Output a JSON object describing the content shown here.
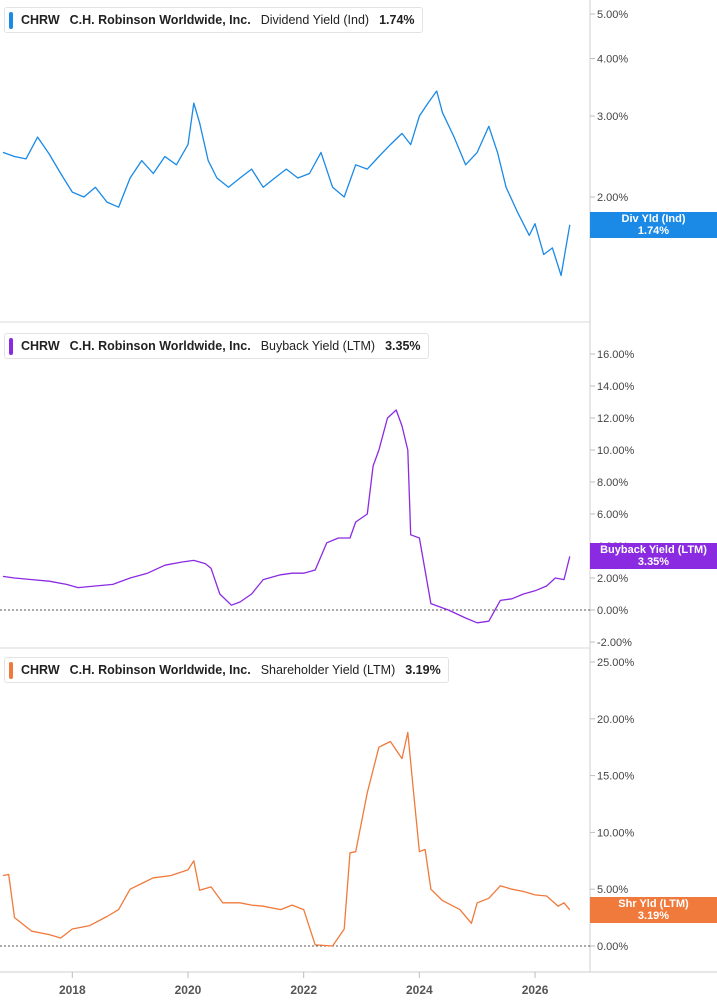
{
  "panels": [
    {
      "ticker": "CHRW",
      "company": "C.H. Robinson Worldwide, Inc.",
      "metric": "Dividend Yield (Ind)",
      "value": "1.74%",
      "tag_line1": "Div Yld (Ind)",
      "tag_line2": "1.74%",
      "color": "#1a8ae6"
    },
    {
      "ticker": "CHRW",
      "company": "C.H. Robinson Worldwide, Inc.",
      "metric": "Buyback Yield (LTM)",
      "value": "3.35%",
      "tag_line1": "Buyback Yield (LTM)",
      "tag_line2": "3.35%",
      "color": "#8a2be2"
    },
    {
      "ticker": "CHRW",
      "company": "C.H. Robinson Worldwide, Inc.",
      "metric": "Shareholder Yield (LTM)",
      "value": "3.19%",
      "tag_line1": "Shr Yld (LTM)",
      "tag_line2": "3.19%",
      "color": "#f07a3c"
    }
  ],
  "chart_data": [
    {
      "type": "line",
      "title": "CHRW C.H. Robinson Worldwide, Inc. Dividend Yield (Ind) 1.74%",
      "y_scale": "log",
      "y_ticks": [
        2.0,
        3.0,
        4.0,
        5.0
      ],
      "y_tick_labels": [
        "2.00%",
        "3.00%",
        "4.00%",
        "5.00%"
      ],
      "series": [
        {
          "name": "Dividend Yield (Ind)",
          "x": [
            2016.8,
            2017.0,
            2017.2,
            2017.4,
            2017.6,
            2017.8,
            2018.0,
            2018.2,
            2018.4,
            2018.6,
            2018.8,
            2019.0,
            2019.2,
            2019.4,
            2019.6,
            2019.8,
            2020.0,
            2020.1,
            2020.2,
            2020.35,
            2020.5,
            2020.7,
            2020.9,
            2021.1,
            2021.3,
            2021.5,
            2021.7,
            2021.9,
            2022.1,
            2022.3,
            2022.5,
            2022.7,
            2022.9,
            2023.1,
            2023.3,
            2023.5,
            2023.7,
            2023.85,
            2024.0,
            2024.15,
            2024.3,
            2024.4,
            2024.6,
            2024.8,
            2025.0,
            2025.2,
            2025.35,
            2025.5,
            2025.7,
            2025.9,
            2026.0,
            2026.15,
            2026.3,
            2026.45,
            2026.55,
            2026.6
          ],
          "values": [
            2.5,
            2.45,
            2.42,
            2.7,
            2.48,
            2.25,
            2.05,
            2.0,
            2.1,
            1.95,
            1.9,
            2.2,
            2.4,
            2.25,
            2.45,
            2.35,
            2.6,
            3.2,
            2.9,
            2.4,
            2.2,
            2.1,
            2.2,
            2.3,
            2.1,
            2.2,
            2.3,
            2.2,
            2.25,
            2.5,
            2.1,
            2.0,
            2.35,
            2.3,
            2.45,
            2.6,
            2.75,
            2.6,
            3.0,
            3.2,
            3.4,
            3.05,
            2.7,
            2.35,
            2.5,
            2.85,
            2.5,
            2.1,
            1.85,
            1.65,
            1.75,
            1.5,
            1.55,
            1.35,
            1.6,
            1.74
          ]
        }
      ]
    },
    {
      "type": "line",
      "title": "CHRW C.H. Robinson Worldwide, Inc. Buyback Yield (LTM) 3.35%",
      "y_ticks": [
        -2,
        0,
        2,
        4,
        6,
        8,
        10,
        12,
        14,
        16
      ],
      "y_tick_labels": [
        "-2.00%",
        "0.00%",
        "2.00%",
        "4.00%",
        "6.00%",
        "8.00%",
        "10.00%",
        "12.00%",
        "14.00%",
        "16.00%"
      ],
      "reference_line": 0,
      "series": [
        {
          "name": "Buyback Yield (LTM)",
          "x": [
            2016.8,
            2017.0,
            2017.3,
            2017.6,
            2017.9,
            2018.1,
            2018.4,
            2018.7,
            2019.0,
            2019.3,
            2019.6,
            2019.9,
            2020.1,
            2020.3,
            2020.4,
            2020.55,
            2020.75,
            2020.9,
            2021.1,
            2021.3,
            2021.6,
            2021.8,
            2022.0,
            2022.2,
            2022.4,
            2022.6,
            2022.8,
            2022.9,
            2023.1,
            2023.2,
            2023.3,
            2023.45,
            2023.6,
            2023.7,
            2023.8,
            2023.85,
            2024.0,
            2024.2,
            2024.5,
            2024.8,
            2025.0,
            2025.2,
            2025.4,
            2025.6,
            2025.8,
            2026.0,
            2026.2,
            2026.35,
            2026.5,
            2026.6
          ],
          "values": [
            2.1,
            2.0,
            1.9,
            1.8,
            1.6,
            1.4,
            1.5,
            1.6,
            2.0,
            2.3,
            2.8,
            3.0,
            3.1,
            2.9,
            2.6,
            1.0,
            0.3,
            0.5,
            1.0,
            1.9,
            2.2,
            2.3,
            2.3,
            2.5,
            4.2,
            4.5,
            4.5,
            5.5,
            6.0,
            9.0,
            10.0,
            12.0,
            12.5,
            11.5,
            10.0,
            4.7,
            4.5,
            0.4,
            0.0,
            -0.5,
            -0.8,
            -0.7,
            0.6,
            0.7,
            1.0,
            1.2,
            1.5,
            2.0,
            1.9,
            3.35
          ]
        }
      ]
    },
    {
      "type": "line",
      "title": "CHRW C.H. Robinson Worldwide, Inc. Shareholder Yield (LTM) 3.19%",
      "y_ticks": [
        0,
        5,
        10,
        15,
        20,
        25
      ],
      "y_tick_labels": [
        "0.00%",
        "5.00%",
        "10.00%",
        "15.00%",
        "20.00%",
        "25.00%"
      ],
      "reference_line": 0,
      "series": [
        {
          "name": "Shareholder Yield (LTM)",
          "x": [
            2016.8,
            2016.9,
            2017.0,
            2017.3,
            2017.6,
            2017.8,
            2018.0,
            2018.3,
            2018.6,
            2018.8,
            2019.0,
            2019.2,
            2019.4,
            2019.7,
            2020.0,
            2020.1,
            2020.2,
            2020.4,
            2020.6,
            2020.9,
            2021.1,
            2021.3,
            2021.6,
            2021.8,
            2022.0,
            2022.2,
            2022.5,
            2022.7,
            2022.8,
            2022.9,
            2023.1,
            2023.3,
            2023.5,
            2023.7,
            2023.8,
            2023.9,
            2024.0,
            2024.1,
            2024.2,
            2024.4,
            2024.7,
            2024.9,
            2025.0,
            2025.2,
            2025.4,
            2025.6,
            2025.8,
            2026.0,
            2026.2,
            2026.4,
            2026.5,
            2026.6
          ],
          "values": [
            6.2,
            6.3,
            2.5,
            1.3,
            1.0,
            0.7,
            1.5,
            1.8,
            2.6,
            3.2,
            5.0,
            5.5,
            6.0,
            6.2,
            6.7,
            7.5,
            4.9,
            5.2,
            3.8,
            3.8,
            3.6,
            3.5,
            3.2,
            3.6,
            3.2,
            0.1,
            0.0,
            1.5,
            8.2,
            8.3,
            13.5,
            17.5,
            18.0,
            16.5,
            18.8,
            13.5,
            8.3,
            8.5,
            5.0,
            4.0,
            3.2,
            2.0,
            3.8,
            4.2,
            5.3,
            5.0,
            4.8,
            4.5,
            4.4,
            3.5,
            3.8,
            3.19
          ]
        }
      ]
    }
  ],
  "x_axis": {
    "range": [
      2016.75,
      2026.95
    ],
    "ticks": [
      2018,
      2020,
      2022,
      2024,
      2026
    ],
    "tick_labels": [
      "2018",
      "2020",
      "2022",
      "2024",
      "2026"
    ]
  }
}
